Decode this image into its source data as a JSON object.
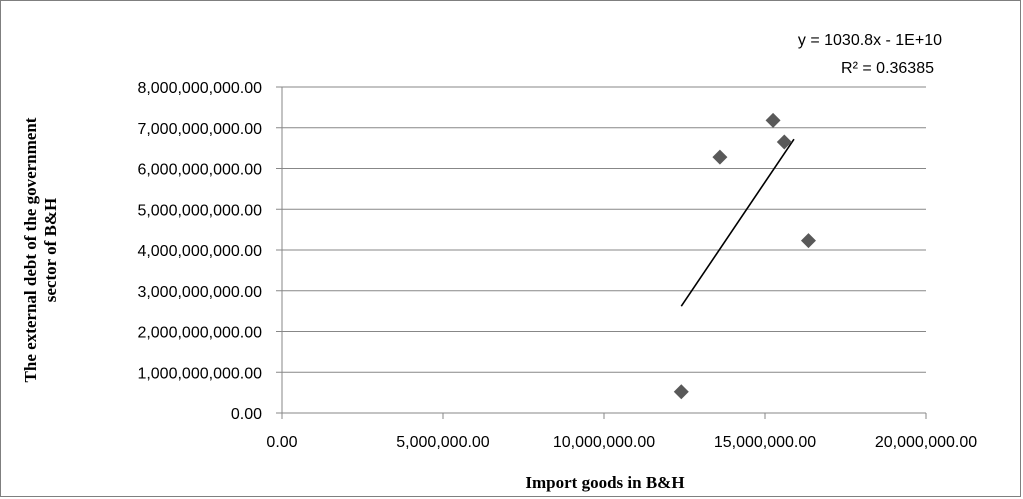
{
  "chart_data": {
    "type": "scatter",
    "xlabel": "Import goods in B&H",
    "ylabel_lines": [
      "The external debt of the government",
      "sector of B&H"
    ],
    "xlim": [
      0,
      20000000
    ],
    "ylim": [
      0,
      8000000000
    ],
    "x_ticks": [
      {
        "value": 0,
        "label": "0.00"
      },
      {
        "value": 5000000,
        "label": "5,000,000.00"
      },
      {
        "value": 10000000,
        "label": "10,000,000.00"
      },
      {
        "value": 15000000,
        "label": "15,000,000.00"
      },
      {
        "value": 20000000,
        "label": "20,000,000.00"
      }
    ],
    "y_ticks": [
      {
        "value": 0,
        "label": "0.00"
      },
      {
        "value": 1000000000,
        "label": "1,000,000,000.00"
      },
      {
        "value": 2000000000,
        "label": "2,000,000,000.00"
      },
      {
        "value": 3000000000,
        "label": "3,000,000,000.00"
      },
      {
        "value": 4000000000,
        "label": "4,000,000,000.00"
      },
      {
        "value": 5000000000,
        "label": "5,000,000,000.00"
      },
      {
        "value": 6000000000,
        "label": "6,000,000,000.00"
      },
      {
        "value": 7000000000,
        "label": "7,000,000,000.00"
      },
      {
        "value": 8000000000,
        "label": "8,000,000,000.00"
      }
    ],
    "grid": "horizontal",
    "marker": "diamond",
    "marker_color": "#595959",
    "points": [
      {
        "x": 12400000,
        "y": 520000000
      },
      {
        "x": 13600000,
        "y": 6280000000
      },
      {
        "x": 15250000,
        "y": 7180000000
      },
      {
        "x": 15600000,
        "y": 6650000000
      },
      {
        "x": 16350000,
        "y": 4230000000
      }
    ],
    "trendline": {
      "type": "linear",
      "x_range": [
        12400000,
        15900000
      ],
      "equation": "y = 1030.8x - 1E+10",
      "r_squared": "R² = 0.36385",
      "color": "#000000"
    }
  }
}
